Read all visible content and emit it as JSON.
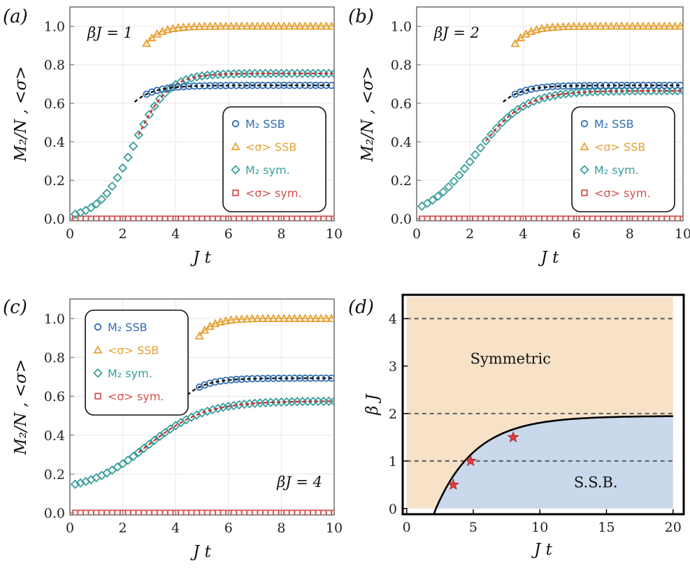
{
  "chart_data": [
    {
      "type": "scatter",
      "panel_label": "(a)",
      "annotation": "βJ = 1",
      "xlabel": "J t",
      "ylabel": "M₂/N , <σ>",
      "xlim": [
        0,
        10
      ],
      "ylim": [
        -0.01,
        1.1
      ],
      "xticks": [
        "0",
        "2",
        "4",
        "6",
        "8",
        "10"
      ],
      "yticks": [
        "0.0",
        "0.2",
        "0.4",
        "0.6",
        "0.8",
        "1.0"
      ],
      "legend": [
        "M₂ SSB",
        "<σ> SSB",
        "M₂ sym.",
        "<σ> sym."
      ],
      "legend_position": "center-right",
      "ssb_start": 2.9,
      "ssb_M2_sat": 0.693,
      "ssb_M2_k": 1.4,
      "ssb_sigma_start": 2.9,
      "ssb_sigma_sat": 1.0,
      "ssb_sigma_k": 2.0,
      "sym_M2": {
        "x_mid": 2.4,
        "k": 1.55,
        "sat": 0.755,
        "x_start": 0.2
      },
      "sym_sigma": 0.0
    },
    {
      "type": "scatter",
      "panel_label": "(b)",
      "annotation": "βJ = 2",
      "xlabel": "J t",
      "ylabel": "M₂/N , <σ>",
      "xlim": [
        0,
        10
      ],
      "ylim": [
        -0.01,
        1.1
      ],
      "xticks": [
        "0",
        "2",
        "4",
        "6",
        "8",
        "10"
      ],
      "yticks": [
        "0.0",
        "0.2",
        "0.4",
        "0.6",
        "0.8",
        "1.0"
      ],
      "legend": [
        "M₂ SSB",
        "<σ> SSB",
        "M₂ sym.",
        "<σ> sym."
      ],
      "legend_position": "center-right",
      "ssb_start": 3.7,
      "ssb_M2_sat": 0.693,
      "ssb_M2_k": 1.4,
      "ssb_sigma_start": 3.7,
      "ssb_sigma_sat": 1.0,
      "ssb_sigma_k": 2.0,
      "sym_M2": {
        "x_mid": 2.2,
        "k": 1.1,
        "sat": 0.665,
        "x_start": 0.2
      },
      "sym_sigma": 0.0
    },
    {
      "type": "scatter",
      "panel_label": "(c)",
      "annotation": "βJ = 4",
      "xlabel": "J t",
      "ylabel": "M₂/N , <σ>",
      "xlim": [
        0,
        10
      ],
      "ylim": [
        -0.01,
        1.1
      ],
      "xticks": [
        "0",
        "2",
        "4",
        "6",
        "8",
        "10"
      ],
      "yticks": [
        "0.0",
        "0.2",
        "0.4",
        "0.6",
        "0.8",
        "1.0"
      ],
      "legend": [
        "M₂ SSB",
        "<σ> SSB",
        "M₂ sym.",
        "<σ> sym."
      ],
      "legend_position": "top-left",
      "ssb_start": 4.9,
      "ssb_M2_sat": 0.693,
      "ssb_M2_k": 1.4,
      "ssb_sigma_start": 4.9,
      "ssb_sigma_sat": 1.0,
      "ssb_sigma_k": 2.0,
      "sym_M2": {
        "x_mid": 2.9,
        "k": 0.9,
        "sat": 0.575,
        "x_start": 0.2,
        "base": 0.11
      },
      "sym_sigma": 0.0
    },
    {
      "type": "area",
      "panel_label": "(d)",
      "xlabel": "J t",
      "ylabel": "β J",
      "xlim": [
        -0.3,
        20.8
      ],
      "ylim": [
        -0.12,
        4.5
      ],
      "xticks": [
        "0",
        "5",
        "10",
        "15",
        "20"
      ],
      "yticks": [
        "0",
        "1",
        "2",
        "3",
        "4"
      ],
      "regions": [
        "Symmetric",
        "S.S.B."
      ],
      "dashed_lines_y": [
        1,
        2,
        4
      ],
      "boundary": {
        "x0": 2.2,
        "A": 1.95,
        "tau": 3.0
      },
      "stars": [
        {
          "x": 3.5,
          "y": 0.5
        },
        {
          "x": 4.8,
          "y": 1.0
        },
        {
          "x": 8.0,
          "y": 1.5
        }
      ]
    }
  ],
  "colors": {
    "m2_ssb": "#2f6db0",
    "sigma_ssb": "#e6a032",
    "m2_sym": "#3a9f9c",
    "sigma_sym": "#d55050",
    "fit_ssb": "#111111",
    "fit_sym": "#d62020",
    "symmetric_fill": "#f7e2c8",
    "ssb_fill": "#c9d8ea",
    "star": "#e03a3a",
    "grid": "#e6e6e6"
  }
}
